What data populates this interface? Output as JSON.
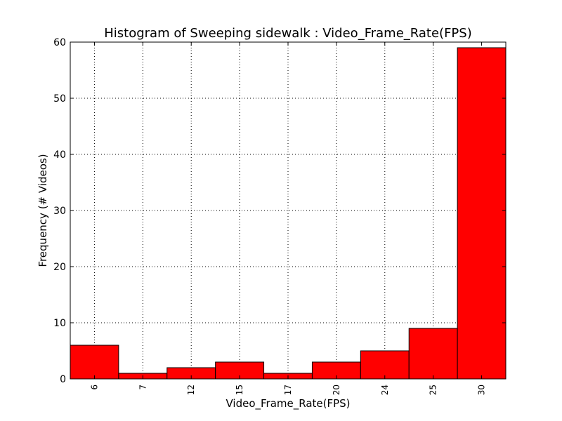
{
  "chart_data": {
    "type": "bar",
    "title": "Histogram of Sweeping sidewalk : Video_Frame_Rate(FPS)",
    "xlabel": "Video_Frame_Rate(FPS)",
    "ylabel": "Frequency (# Videos)",
    "categories": [
      "6",
      "7",
      "12",
      "15",
      "17",
      "20",
      "24",
      "25",
      "30"
    ],
    "values": [
      6,
      1,
      2,
      3,
      1,
      3,
      5,
      9,
      59
    ],
    "ylim": [
      0,
      60
    ],
    "yticks": [
      0,
      10,
      20,
      30,
      40,
      50,
      60
    ],
    "grid": true,
    "bar_color": "#ff0000"
  }
}
